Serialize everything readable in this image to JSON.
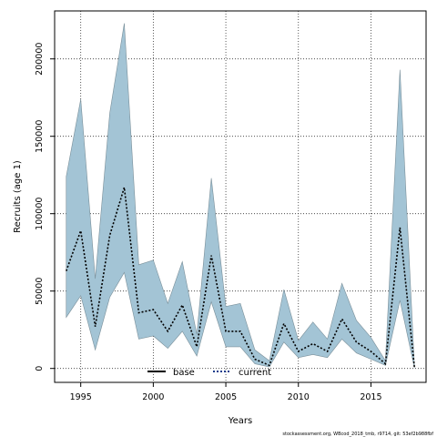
{
  "chart_data": {
    "type": "area",
    "title": "",
    "xlabel": "Years",
    "ylabel": "Recruits (age 1)",
    "xlim": [
      1993.2,
      2018.8
    ],
    "ylim": [
      -9000,
      231000
    ],
    "x_ticks": [
      1995,
      2000,
      2005,
      2010,
      2015
    ],
    "x_tick_labels": [
      "1995",
      "2000",
      "2005",
      "2010",
      "2015"
    ],
    "y_ticks": [
      0,
      50000,
      100000,
      150000,
      200000
    ],
    "y_tick_labels": [
      "0",
      "50000",
      "100000",
      "150000",
      "200000"
    ],
    "grid": true,
    "legend_placement": "bottom-center",
    "colors": {
      "band_fill": "#a3c4d5",
      "band_edge": "#7a8f99",
      "line": "#000000",
      "grid": "#333333"
    },
    "x": [
      1994,
      1995,
      1996,
      1997,
      1998,
      1999,
      2000,
      2001,
      2002,
      2003,
      2004,
      2005,
      2006,
      2007,
      2008,
      2009,
      2010,
      2011,
      2012,
      2013,
      2014,
      2015,
      2016,
      2017,
      2018
    ],
    "series": [
      {
        "name": "current",
        "style": "dotted",
        "values": [
          63000,
          89000,
          27000,
          86000,
          117000,
          36000,
          38000,
          24000,
          41000,
          14000,
          73000,
          24000,
          24000,
          6000,
          2000,
          29000,
          11000,
          16000,
          11000,
          32000,
          17000,
          11000,
          3000,
          91000,
          500
        ]
      }
    ],
    "band": {
      "lower": [
        33000,
        47000,
        12000,
        46000,
        62000,
        19000,
        21000,
        13000,
        24000,
        8000,
        43000,
        14000,
        14000,
        3000,
        1000,
        17000,
        7000,
        9000,
        7000,
        19000,
        10000,
        6000,
        2000,
        44000,
        200
      ],
      "upper": [
        124000,
        174000,
        58000,
        165000,
        223000,
        67000,
        70000,
        42000,
        69000,
        22000,
        123000,
        40000,
        42000,
        12000,
        5000,
        51000,
        18000,
        30000,
        19000,
        55000,
        31000,
        20000,
        5000,
        193000,
        1000
      ]
    },
    "legend": [
      {
        "label": "base",
        "style": "solid"
      },
      {
        "label": "current",
        "style": "dotted"
      }
    ],
    "footer": "stockassessment.org, WBcod_2018_tmb, r9714, git: 53ef2b988fbf"
  }
}
